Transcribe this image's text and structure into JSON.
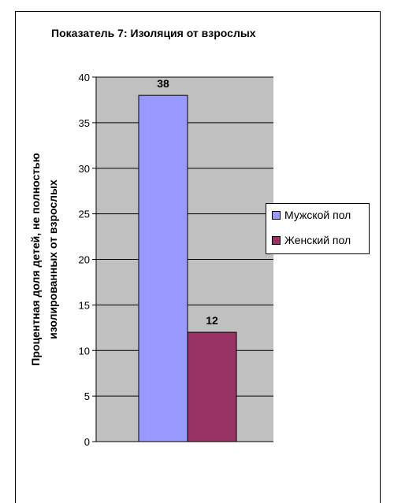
{
  "chart_data": {
    "type": "bar",
    "title": "Показатель 7: Изоляция от взрослых",
    "ylabel_line1": "Процентная доля детей, не полностью",
    "ylabel_line2": "изолированных от взрослых",
    "xlabel": "",
    "ylim": [
      0,
      40
    ],
    "yticks": [
      0,
      5,
      10,
      15,
      20,
      25,
      30,
      35,
      40
    ],
    "grid": true,
    "legend_position": "right",
    "series": [
      {
        "name": "Мужской пол",
        "values": [
          38
        ],
        "color": "#9999ff",
        "label": "38"
      },
      {
        "name": "Женский пол",
        "values": [
          12
        ],
        "color": "#993366",
        "label": "12"
      }
    ],
    "plot_background": "#c0c0c0"
  }
}
